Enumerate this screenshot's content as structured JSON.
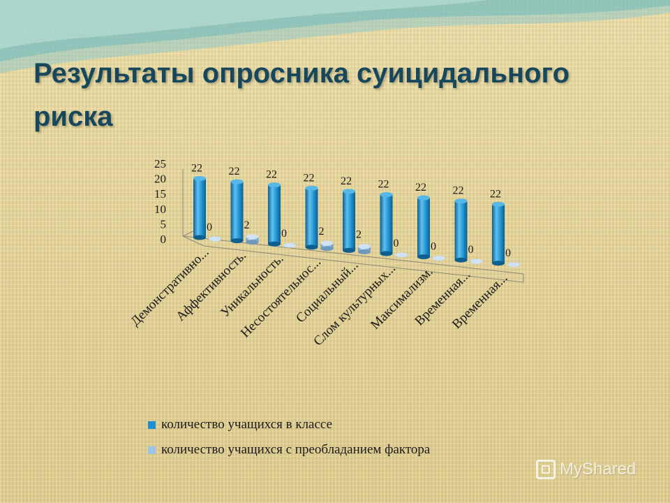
{
  "slide": {
    "title": "Результаты опросника суицидального риска",
    "watermark": "MyShared"
  },
  "colors": {
    "series1": "#1e8fcf",
    "series2": "#9cc3e6",
    "title": "#17475c"
  },
  "chart_data": {
    "type": "bar",
    "style": "3d-cylinder",
    "categories": [
      "Демонстративно...",
      "Аффективность.",
      "Уникальность.",
      "Несостоятельнос...",
      "Социальный...",
      "Слом культурных...",
      "Максимализм.",
      "Временная...",
      "Временная..."
    ],
    "series": [
      {
        "name": "количество учащихся в классе",
        "values": [
          22,
          22,
          22,
          22,
          22,
          22,
          22,
          22,
          22
        ]
      },
      {
        "name": "количество учащихся с преобладанием фактора",
        "values": [
          0,
          2,
          0,
          2,
          2,
          0,
          0,
          0,
          0
        ]
      }
    ],
    "ylim": [
      0,
      25
    ],
    "yticks": [
      "25",
      "20",
      "15",
      "10",
      "5",
      "0"
    ],
    "grid": false,
    "legend_position": "bottom",
    "data_labels": true
  }
}
